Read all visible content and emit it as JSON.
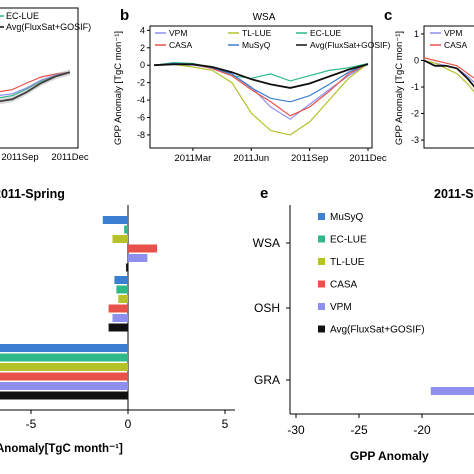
{
  "colors": {
    "VPM": "#8f8ff0",
    "CASA": "#e8504a",
    "TL-LUE": "#b5c22a",
    "MuSyQ": "#3b7fd0",
    "EC-LUE": "#2fb989",
    "Avg": "#111111"
  },
  "chart_data": [
    {
      "id": "a",
      "type": "line",
      "legend_entries": [
        "EC-LUE",
        "Avg(FluxSat+GOSIF)"
      ],
      "x_ticks": [
        "2011Sep",
        "2011Dec"
      ],
      "yticks": [],
      "series": [
        {
          "name": "EC-LUE",
          "y": [
            -4.0,
            -3.6,
            -2.5,
            -1.2,
            -0.3,
            0.3
          ]
        },
        {
          "name": "CASA",
          "y": [
            -3.0,
            -2.6,
            -1.5,
            -0.5,
            0.0,
            0.3
          ]
        },
        {
          "name": "VPM",
          "y": [
            -3.6,
            -3.3,
            -2.3,
            -1.0,
            -0.2,
            0.3
          ]
        },
        {
          "name": "Avg(FluxSat+GOSIF)",
          "y": [
            -4.6,
            -4.2,
            -3.0,
            -1.5,
            -0.4,
            0.3
          ]
        }
      ]
    },
    {
      "id": "b",
      "panel_letter": "b",
      "type": "line",
      "title": "WSA",
      "ylabel": "GPP Anomaly [TgC mon⁻¹]",
      "ylim": [
        -9.5,
        4.5
      ],
      "x_ticks": [
        "2011Mar",
        "2011Jun",
        "2011Sep",
        "2011Dec"
      ],
      "yticks": [
        -8,
        -6,
        -4,
        -2,
        0,
        2,
        4
      ],
      "legend_entries": [
        "VPM",
        "TL-LUE",
        "EC-LUE",
        "CASA",
        "MuSyQ",
        "Avg(FluxSat+GOSIF)"
      ],
      "months": [
        1,
        2,
        3,
        4,
        5,
        6,
        7,
        8,
        9,
        10,
        11,
        12
      ],
      "series": [
        {
          "name": "VPM",
          "y": [
            0.0,
            0.1,
            0.0,
            -0.3,
            -1.0,
            -2.5,
            -4.8,
            -6.2,
            -4.5,
            -2.8,
            -1.2,
            0.2
          ]
        },
        {
          "name": "TL-LUE",
          "y": [
            0.0,
            0.1,
            -0.2,
            -0.6,
            -2.0,
            -5.5,
            -7.5,
            -8.0,
            -6.5,
            -4.0,
            -1.5,
            0.2
          ]
        },
        {
          "name": "EC-LUE",
          "y": [
            0.0,
            0.3,
            0.2,
            -0.3,
            -1.2,
            -1.5,
            -1.0,
            -1.8,
            -1.2,
            -0.6,
            -0.3,
            0.2
          ]
        },
        {
          "name": "CASA",
          "y": [
            0.0,
            0.2,
            0.1,
            -0.4,
            -1.2,
            -2.8,
            -4.2,
            -5.8,
            -4.8,
            -3.0,
            -1.0,
            0.2
          ]
        },
        {
          "name": "MuSyQ",
          "y": [
            0.0,
            0.2,
            0.1,
            -0.3,
            -1.0,
            -2.6,
            -3.8,
            -4.2,
            -3.5,
            -2.2,
            -0.8,
            0.2
          ]
        },
        {
          "name": "Avg(FluxSat+GOSIF)",
          "y": [
            0.0,
            0.1,
            0.1,
            -0.2,
            -0.8,
            -1.6,
            -2.2,
            -2.6,
            -2.1,
            -1.3,
            -0.5,
            0.1
          ]
        }
      ]
    },
    {
      "id": "c",
      "panel_letter": "c",
      "type": "line",
      "ylabel": "GPP Anomaly [TgC mon⁻¹]",
      "ylim": [
        -3.3,
        1.3
      ],
      "yticks": [
        1,
        0,
        -1,
        -2,
        -3
      ],
      "legend_entries": [
        "VPM",
        "CASA"
      ],
      "series": [
        {
          "name": "VPM",
          "y": [
            0.0,
            -0.1,
            -0.2,
            -0.3,
            -0.6,
            -1.0
          ]
        },
        {
          "name": "CASA",
          "y": [
            0.1,
            0.0,
            -0.1,
            -0.2,
            -0.5,
            -0.8
          ]
        },
        {
          "name": "TL-LUE",
          "y": [
            0.0,
            -0.1,
            -0.3,
            -0.5,
            -0.9,
            -1.4
          ]
        },
        {
          "name": "Avg(FluxSat+GOSIF)",
          "y": [
            0.0,
            -0.2,
            -0.2,
            -0.3,
            -0.7,
            -1.2
          ]
        }
      ]
    },
    {
      "id": "d",
      "type": "bar",
      "orientation": "horizontal",
      "title": "2011-Spring",
      "xlabel": "Anomaly[TgC month⁻¹]",
      "xlim": [
        -12,
        5
      ],
      "x_ticks": [
        "-5",
        "0",
        "5"
      ],
      "x_tick_values": [
        -5,
        0,
        5
      ],
      "groups": [
        {
          "label": "WSA",
          "values": {
            "MuSyQ": -1.3,
            "EC-LUE": -0.2,
            "TL-LUE": -0.8,
            "CASA": 1.5,
            "VPM": 1.0,
            "Avg": -0.1
          }
        },
        {
          "label": "OSH",
          "values": {
            "MuSyQ": -0.7,
            "EC-LUE": -0.6,
            "TL-LUE": -0.5,
            "CASA": -1.0,
            "VPM": -0.8,
            "Avg": -1.0
          }
        },
        {
          "label": "GRA",
          "values": {
            "MuSyQ": -12,
            "EC-LUE": -12,
            "TL-LUE": -12,
            "CASA": -12,
            "VPM": -12,
            "Avg": -12
          }
        }
      ]
    },
    {
      "id": "e",
      "panel_letter": "e",
      "type": "bar",
      "orientation": "horizontal",
      "title": "2011-S",
      "xlabel": "GPP Anomaly",
      "xlim": [
        -31,
        -16
      ],
      "x_ticks": [
        "-30",
        "-25",
        "-20"
      ],
      "x_tick_values": [
        -30,
        -25,
        -20
      ],
      "categories": [
        "WSA",
        "OSH",
        "GRA"
      ],
      "legend_entries": [
        "MuSyQ",
        "EC-LUE",
        "TL-LUE",
        "CASA",
        "VPM",
        "Avg(FluxSat+GOSIF)"
      ],
      "groups": [
        {
          "label": "WSA",
          "values": {
            "MuSyQ": null,
            "EC-LUE": null,
            "TL-LUE": null,
            "CASA": null,
            "VPM": null,
            "Avg": null
          }
        },
        {
          "label": "OSH",
          "values": {
            "MuSyQ": null,
            "EC-LUE": null,
            "TL-LUE": null,
            "CASA": null,
            "VPM": null,
            "Avg": null
          }
        },
        {
          "label": "GRA",
          "values": {
            "MuSyQ": -17.5,
            "EC-LUE": null,
            "TL-LUE": -21.3,
            "CASA": -17.0,
            "VPM": -25.5,
            "Avg": -20.5
          }
        }
      ]
    }
  ]
}
